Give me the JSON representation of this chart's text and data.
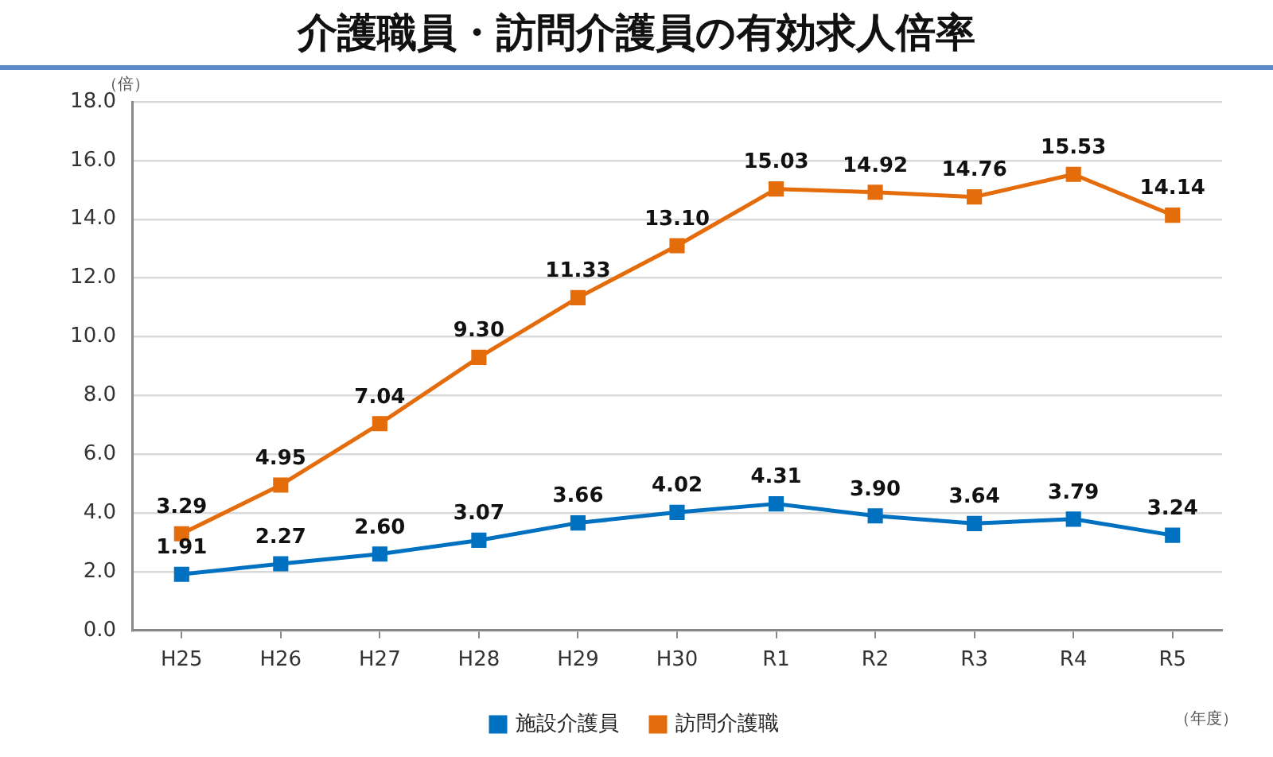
{
  "chart_data": {
    "type": "line",
    "title": "介護職員・訪問介護員の有効求人倍率",
    "ylabel": "（倍）",
    "xlabel": "（年度）",
    "categories": [
      "H25",
      "H26",
      "H27",
      "H28",
      "H29",
      "H30",
      "R1",
      "R2",
      "R3",
      "R4",
      "R5"
    ],
    "series": [
      {
        "name": "施設介護員",
        "color": "#0070c0",
        "values": [
          1.91,
          2.27,
          2.6,
          3.07,
          3.66,
          4.02,
          4.31,
          3.9,
          3.64,
          3.79,
          3.24
        ],
        "value_labels": [
          "1.91",
          "2.27",
          "2.60",
          "3.07",
          "3.66",
          "4.02",
          "4.31",
          "3.90",
          "3.64",
          "3.79",
          "3.24"
        ]
      },
      {
        "name": "訪問介護職",
        "color": "#e46c0a",
        "values": [
          3.29,
          4.95,
          7.04,
          9.3,
          11.33,
          13.1,
          15.03,
          14.92,
          14.76,
          15.53,
          14.14
        ],
        "value_labels": [
          "3.29",
          "4.95",
          "7.04",
          "9.30",
          "11.33",
          "13.10",
          "15.03",
          "14.92",
          "14.76",
          "15.53",
          "14.14"
        ]
      }
    ],
    "ylim": [
      0,
      18
    ],
    "yticks": [
      {
        "value": 0,
        "label": "0.0"
      },
      {
        "value": 2,
        "label": "2.0"
      },
      {
        "value": 4,
        "label": "4.0"
      },
      {
        "value": 6,
        "label": "6.0"
      },
      {
        "value": 8,
        "label": "8.0"
      },
      {
        "value": 10,
        "label": "10.0"
      },
      {
        "value": 12,
        "label": "12.0"
      },
      {
        "value": 14,
        "label": "14.0"
      },
      {
        "value": 16,
        "label": "16.0"
      },
      {
        "value": 18,
        "label": "18.0"
      }
    ],
    "grid": "y",
    "legend": "bottom",
    "marker": "square",
    "line_style": "solid"
  }
}
